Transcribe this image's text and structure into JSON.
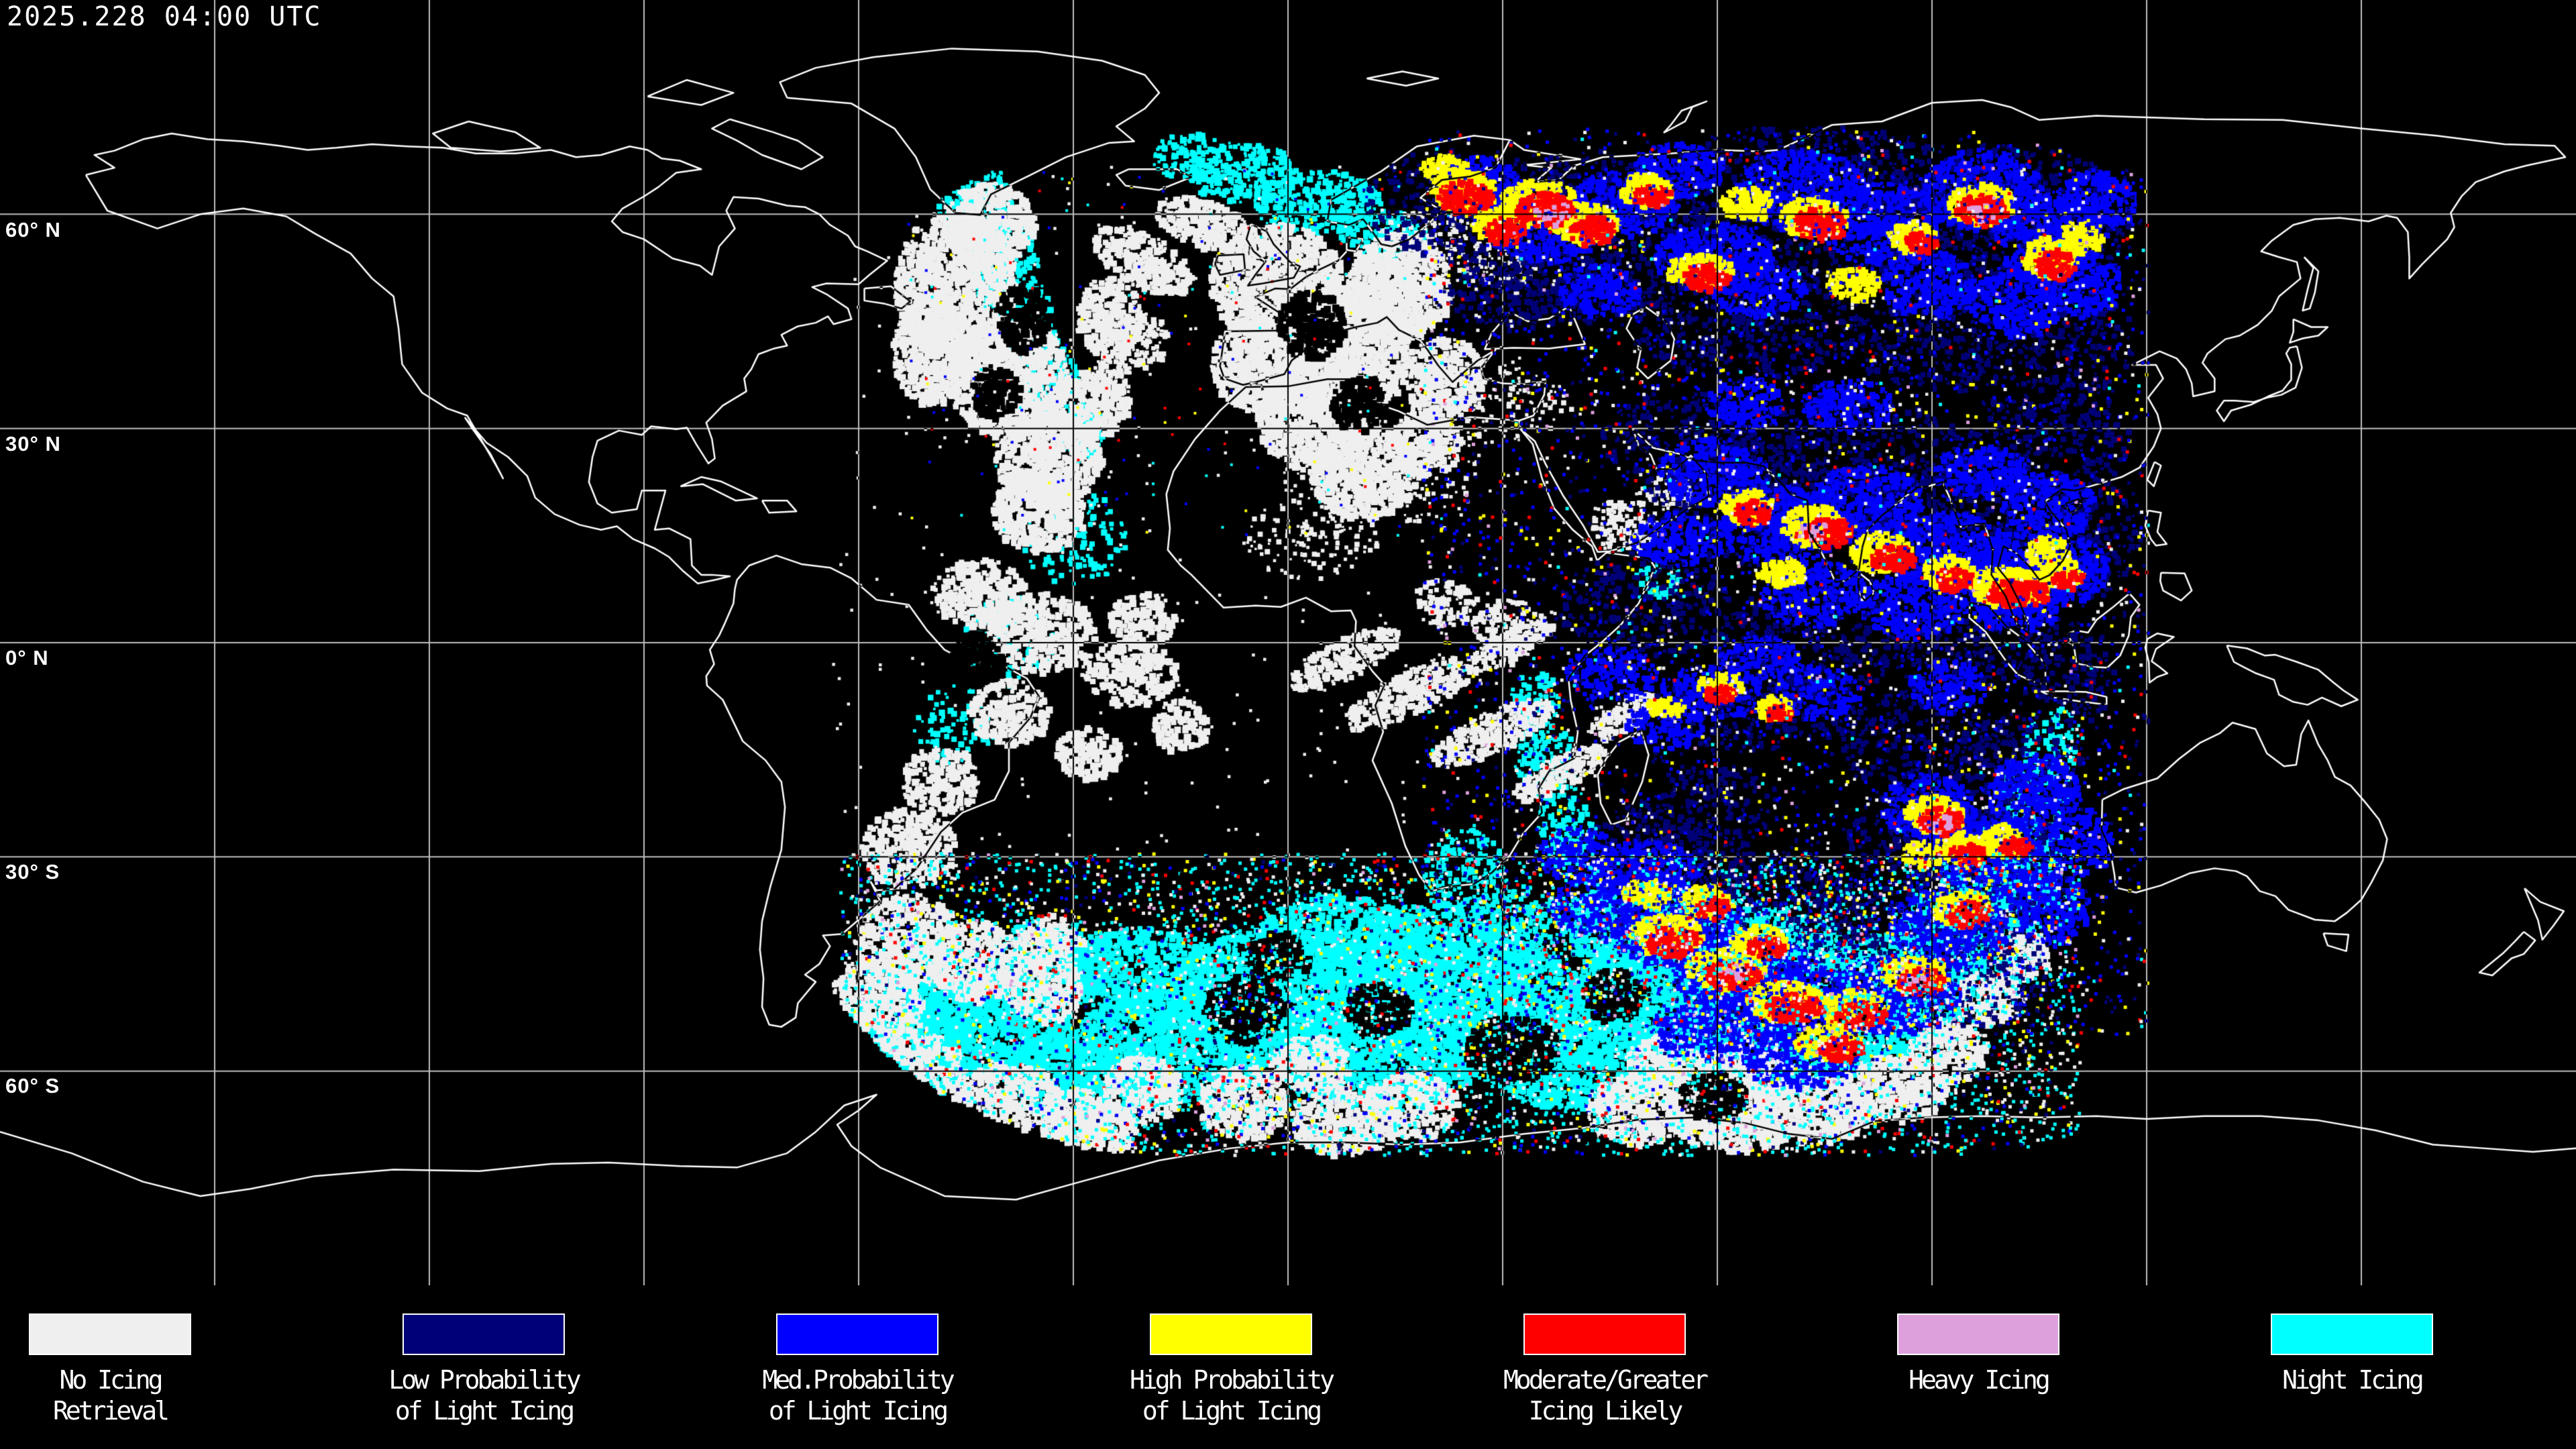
{
  "header": {
    "timestamp": "2025.228 04:00 UTC"
  },
  "map": {
    "lat_labels": [
      {
        "text": "60° N"
      },
      {
        "text": "30° N"
      },
      {
        "text": "0° N"
      },
      {
        "text": "30° S"
      },
      {
        "text": "60° S"
      }
    ],
    "colors": {
      "background": "#000000",
      "coastline": "#FFFFFF",
      "coastline_over_data": "#000000",
      "gridline": "#BEBEBE"
    }
  },
  "legend": {
    "items": [
      {
        "key": "no_icing_retrieval",
        "label": "No Icing\nRetrieval",
        "color": "#EFEFEF"
      },
      {
        "key": "low_prob_light_icing",
        "label": "Low Probability\nof Light Icing",
        "color": "#000078"
      },
      {
        "key": "med_prob_light_icing",
        "label": "Med.Probability\nof Light Icing",
        "color": "#0000FF"
      },
      {
        "key": "high_prob_light_icing",
        "label": "High Probability\nof Light Icing",
        "color": "#FFFF00"
      },
      {
        "key": "moderate_greater_icing",
        "label": "Moderate/Greater\nIcing Likely",
        "color": "#FF0000"
      },
      {
        "key": "heavy_icing",
        "label": "Heavy Icing",
        "color": "#DDA0DD"
      },
      {
        "key": "night_icing",
        "label": "Night Icing",
        "color": "#00FFFF"
      }
    ]
  }
}
